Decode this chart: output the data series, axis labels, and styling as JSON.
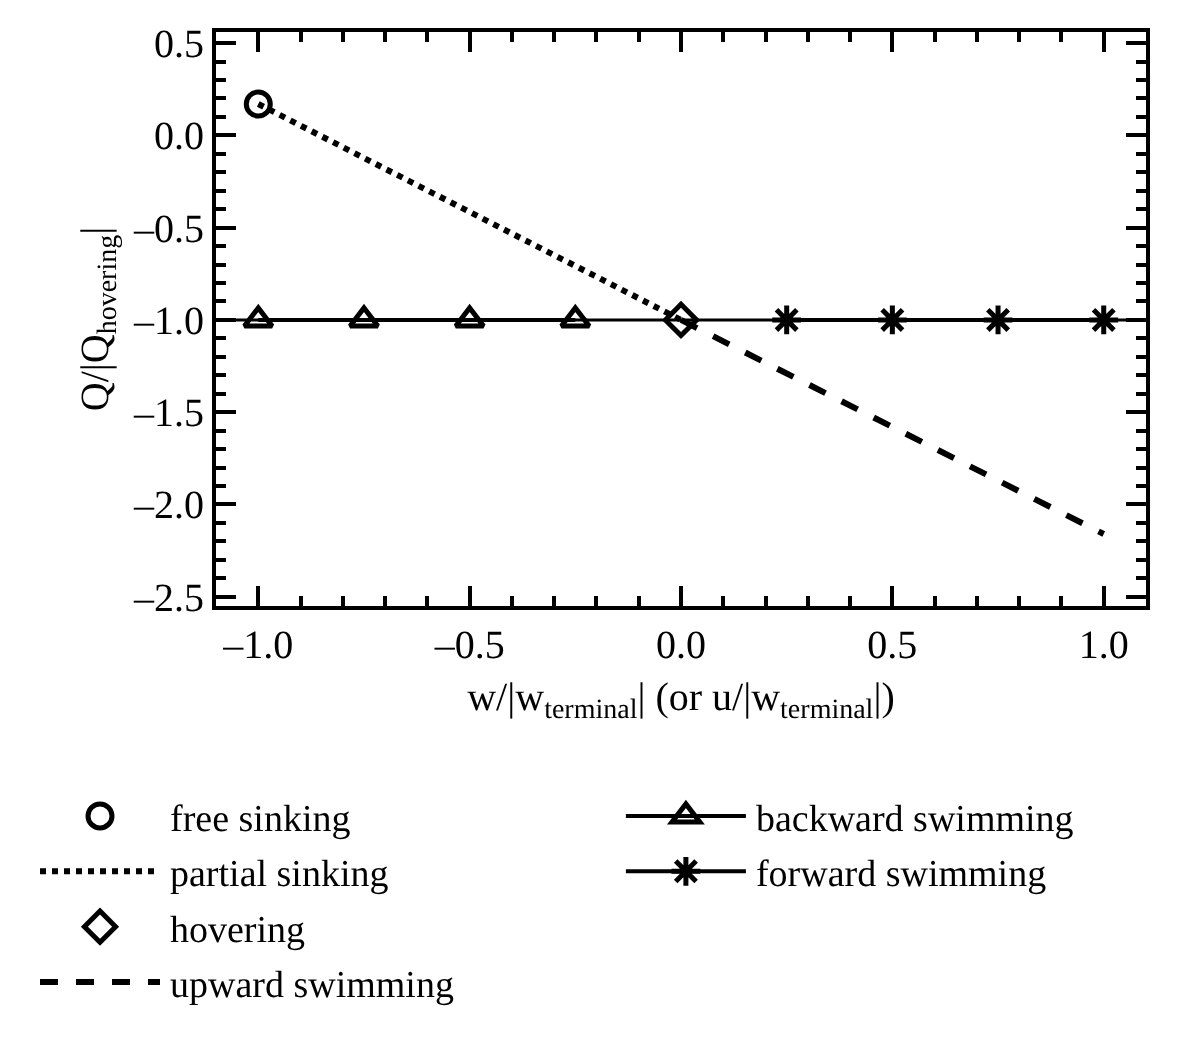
{
  "chart_data": {
    "type": "line",
    "xlabel": "w/|w$_{terminal}$| (or u/|w$_{terminal}$|)",
    "ylabel": "Q/|Q$_{hovering}$|",
    "xlim": [
      -1.1,
      1.1
    ],
    "xticks": [
      {
        "value": -1.0,
        "label": "–1.0"
      },
      {
        "value": -0.5,
        "label": "–0.5"
      },
      {
        "value": 0,
        "label": "0.0"
      },
      {
        "value": 0.5,
        "label": "0.5"
      },
      {
        "value": 1.0,
        "label": "1.0"
      }
    ],
    "ylim": [
      -2.55,
      0.56
    ],
    "yticks": [
      {
        "value": -2.5,
        "label": "–2.5"
      },
      {
        "value": -2.0,
        "label": "–2.0"
      },
      {
        "value": -1.5,
        "label": "–1.5"
      },
      {
        "value": -1.0,
        "label": "–1.0"
      },
      {
        "value": -0.5,
        "label": "–0.5"
      },
      {
        "value": 0,
        "label": "0.0"
      },
      {
        "value": 0.5,
        "label": "0.5"
      }
    ],
    "grid": false,
    "legend": "bottom",
    "ref_lines": [
      {
        "axis": "y",
        "value": -1.0,
        "color": "#000000",
        "line_style": "solid"
      }
    ],
    "series": [
      {
        "name": "free sinking",
        "color": "#000000",
        "type": "scatter",
        "marker": "circle",
        "x": [
          -1.0
        ],
        "values": [
          0.17
        ]
      },
      {
        "name": "partial sinking",
        "color": "#000000",
        "marker": "none",
        "line_style": "dotted",
        "x": [
          -1.0,
          0.0
        ],
        "values": [
          0.17,
          -1.0
        ]
      },
      {
        "name": "hovering",
        "color": "#000000",
        "type": "scatter",
        "marker": "diamond",
        "x": [
          0.0
        ],
        "values": [
          -1.0
        ]
      },
      {
        "name": "upward swimming",
        "color": "#000000",
        "marker": "none",
        "line_style": "dashed",
        "x": [
          0.0,
          1.0
        ],
        "values": [
          -1.0,
          -2.16
        ]
      },
      {
        "name": "backward swimming",
        "color": "#000000",
        "marker": "triangle",
        "line_style": "solid",
        "x": [
          -1.0,
          -0.75,
          -0.5,
          -0.25
        ],
        "values": [
          -1.0,
          -1.0,
          -1.0,
          -1.0
        ]
      },
      {
        "name": "forward swimming",
        "color": "#000000",
        "marker": "cross",
        "line_style": "solid",
        "x": [
          0.25,
          0.5,
          0.75,
          1.0
        ],
        "values": [
          -1.0,
          -1.0,
          -1.0,
          -1.0
        ]
      }
    ]
  }
}
